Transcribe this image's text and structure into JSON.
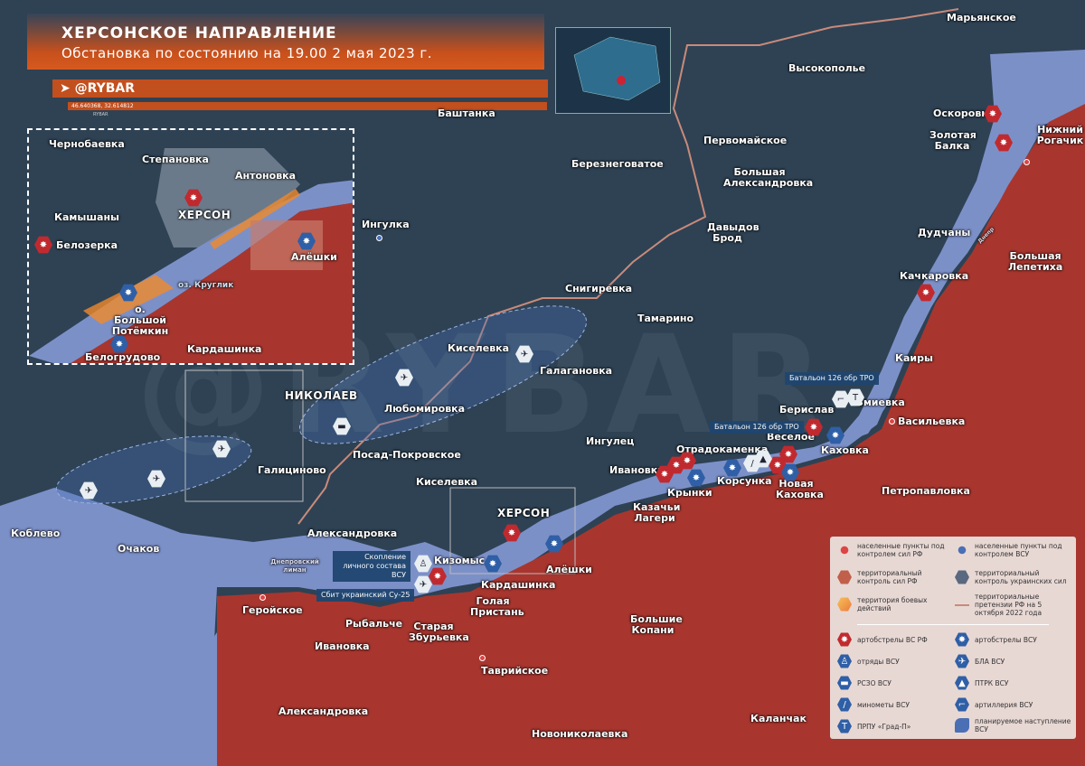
{
  "header": {
    "title": "ХЕРСОНСКОЕ НАПРАВЛЕНИЕ",
    "subtitle": "Обстановка по состоянию на 19.00 2 мая 2023 г.",
    "brand": "@RYBAR",
    "coords": "46.640368, 32.614812",
    "brand_small": "RYBAR",
    "watermark": "@RYBAR"
  },
  "colors": {
    "ru_territory": "#a8362f",
    "ua_territory": "#2e4254",
    "water": "#7c90c8",
    "combat_zone": "#f08a2a",
    "claim_line": "#c98a7a"
  },
  "places": [
    "Марьянское",
    "Высокополье",
    "Оскоровка",
    "Золотая Балка",
    "Нижний Рогачик",
    "Баштанка",
    "Первомайское",
    "Березнеговатое",
    "Большая Александровка",
    "Ингулка",
    "Давыдов Брод",
    "Дудчаны",
    "Большая Лепетиха",
    "Качкаровка",
    "Снигиревка",
    "Тамарино",
    "Киселевка",
    "Галагановка",
    "Каиры",
    "НИКОЛАЕВ",
    "Любомировка",
    "Змиевка",
    "Берислав",
    "Васильевка",
    "Веселое",
    "Каховка",
    "Посад-Покровское",
    "Отрадокаменка",
    "Ингулец",
    "Ивановка",
    "Галициново",
    "Киселевка",
    "Крынки",
    "Корсунка",
    "Новая Каховка",
    "Казачьи Лагери",
    "Петропавловка",
    "ХЕРСОН",
    "Коблево",
    "Александровка",
    "Очаков",
    "Кизомыс",
    "Алёшки",
    "Кардашинка",
    "Голая Пристань",
    "Геройское",
    "Рыбальче",
    "Старая Збурьевка",
    "Большие Копани",
    "Ивановка",
    "Таврийское",
    "Александровка",
    "Новониколаевка",
    "Каланчак"
  ],
  "water_labels": [
    "Днепровский лиман",
    "Днепр"
  ],
  "inset": [
    "Чернобаевка",
    "Степановка",
    "Антоновка",
    "ХЕРСОН",
    "Камышаны",
    "Белозерка",
    "Алёшки",
    "о. Большой Потёмкин",
    "оз. Круглик",
    "Белогрудово",
    "Кардашинка"
  ],
  "callouts": [
    "Батальон 126 обр ТРО",
    "Батальон 126 обр ТРО",
    "Скопление личного состава ВСУ",
    "Сбит украинский Су-25"
  ],
  "legend": [
    {
      "label": "населенные пункты под контролем сил РФ",
      "icon": "ru-pin-icon"
    },
    {
      "label": "населенные пункты под контролем ВСУ",
      "icon": "ua-pin-icon"
    },
    {
      "label": "территориальный контроль сил РФ",
      "icon": "ru-hex-icon"
    },
    {
      "label": "территориальный контроль украинских сил",
      "icon": "ua-hex-icon"
    },
    {
      "label": "территория боевых действий",
      "icon": "combat-hex-icon"
    },
    {
      "label": "территориальные претензии РФ на 5 октября 2022 года",
      "icon": "claim-line-icon"
    },
    {
      "label": "артобстрелы ВС РФ",
      "icon": "ru-artillery-fire-icon"
    },
    {
      "label": "артобстрелы ВСУ",
      "icon": "ua-artillery-fire-icon"
    },
    {
      "label": "отряды ВСУ",
      "icon": "soldier-icon"
    },
    {
      "label": "БЛА ВСУ",
      "icon": "drone-icon"
    },
    {
      "label": "РСЗО ВСУ",
      "icon": "mlrs-icon"
    },
    {
      "label": "ПТРК ВСУ",
      "icon": "atgm-icon"
    },
    {
      "label": "минометы ВСУ",
      "icon": "mortar-icon"
    },
    {
      "label": "артиллерия ВСУ",
      "icon": "artillery-icon"
    },
    {
      "label": "ПРПУ «Град-П»",
      "icon": "grad-p-icon"
    },
    {
      "label": "планируемое наступление ВСУ",
      "icon": "planned-offensive-icon"
    }
  ]
}
